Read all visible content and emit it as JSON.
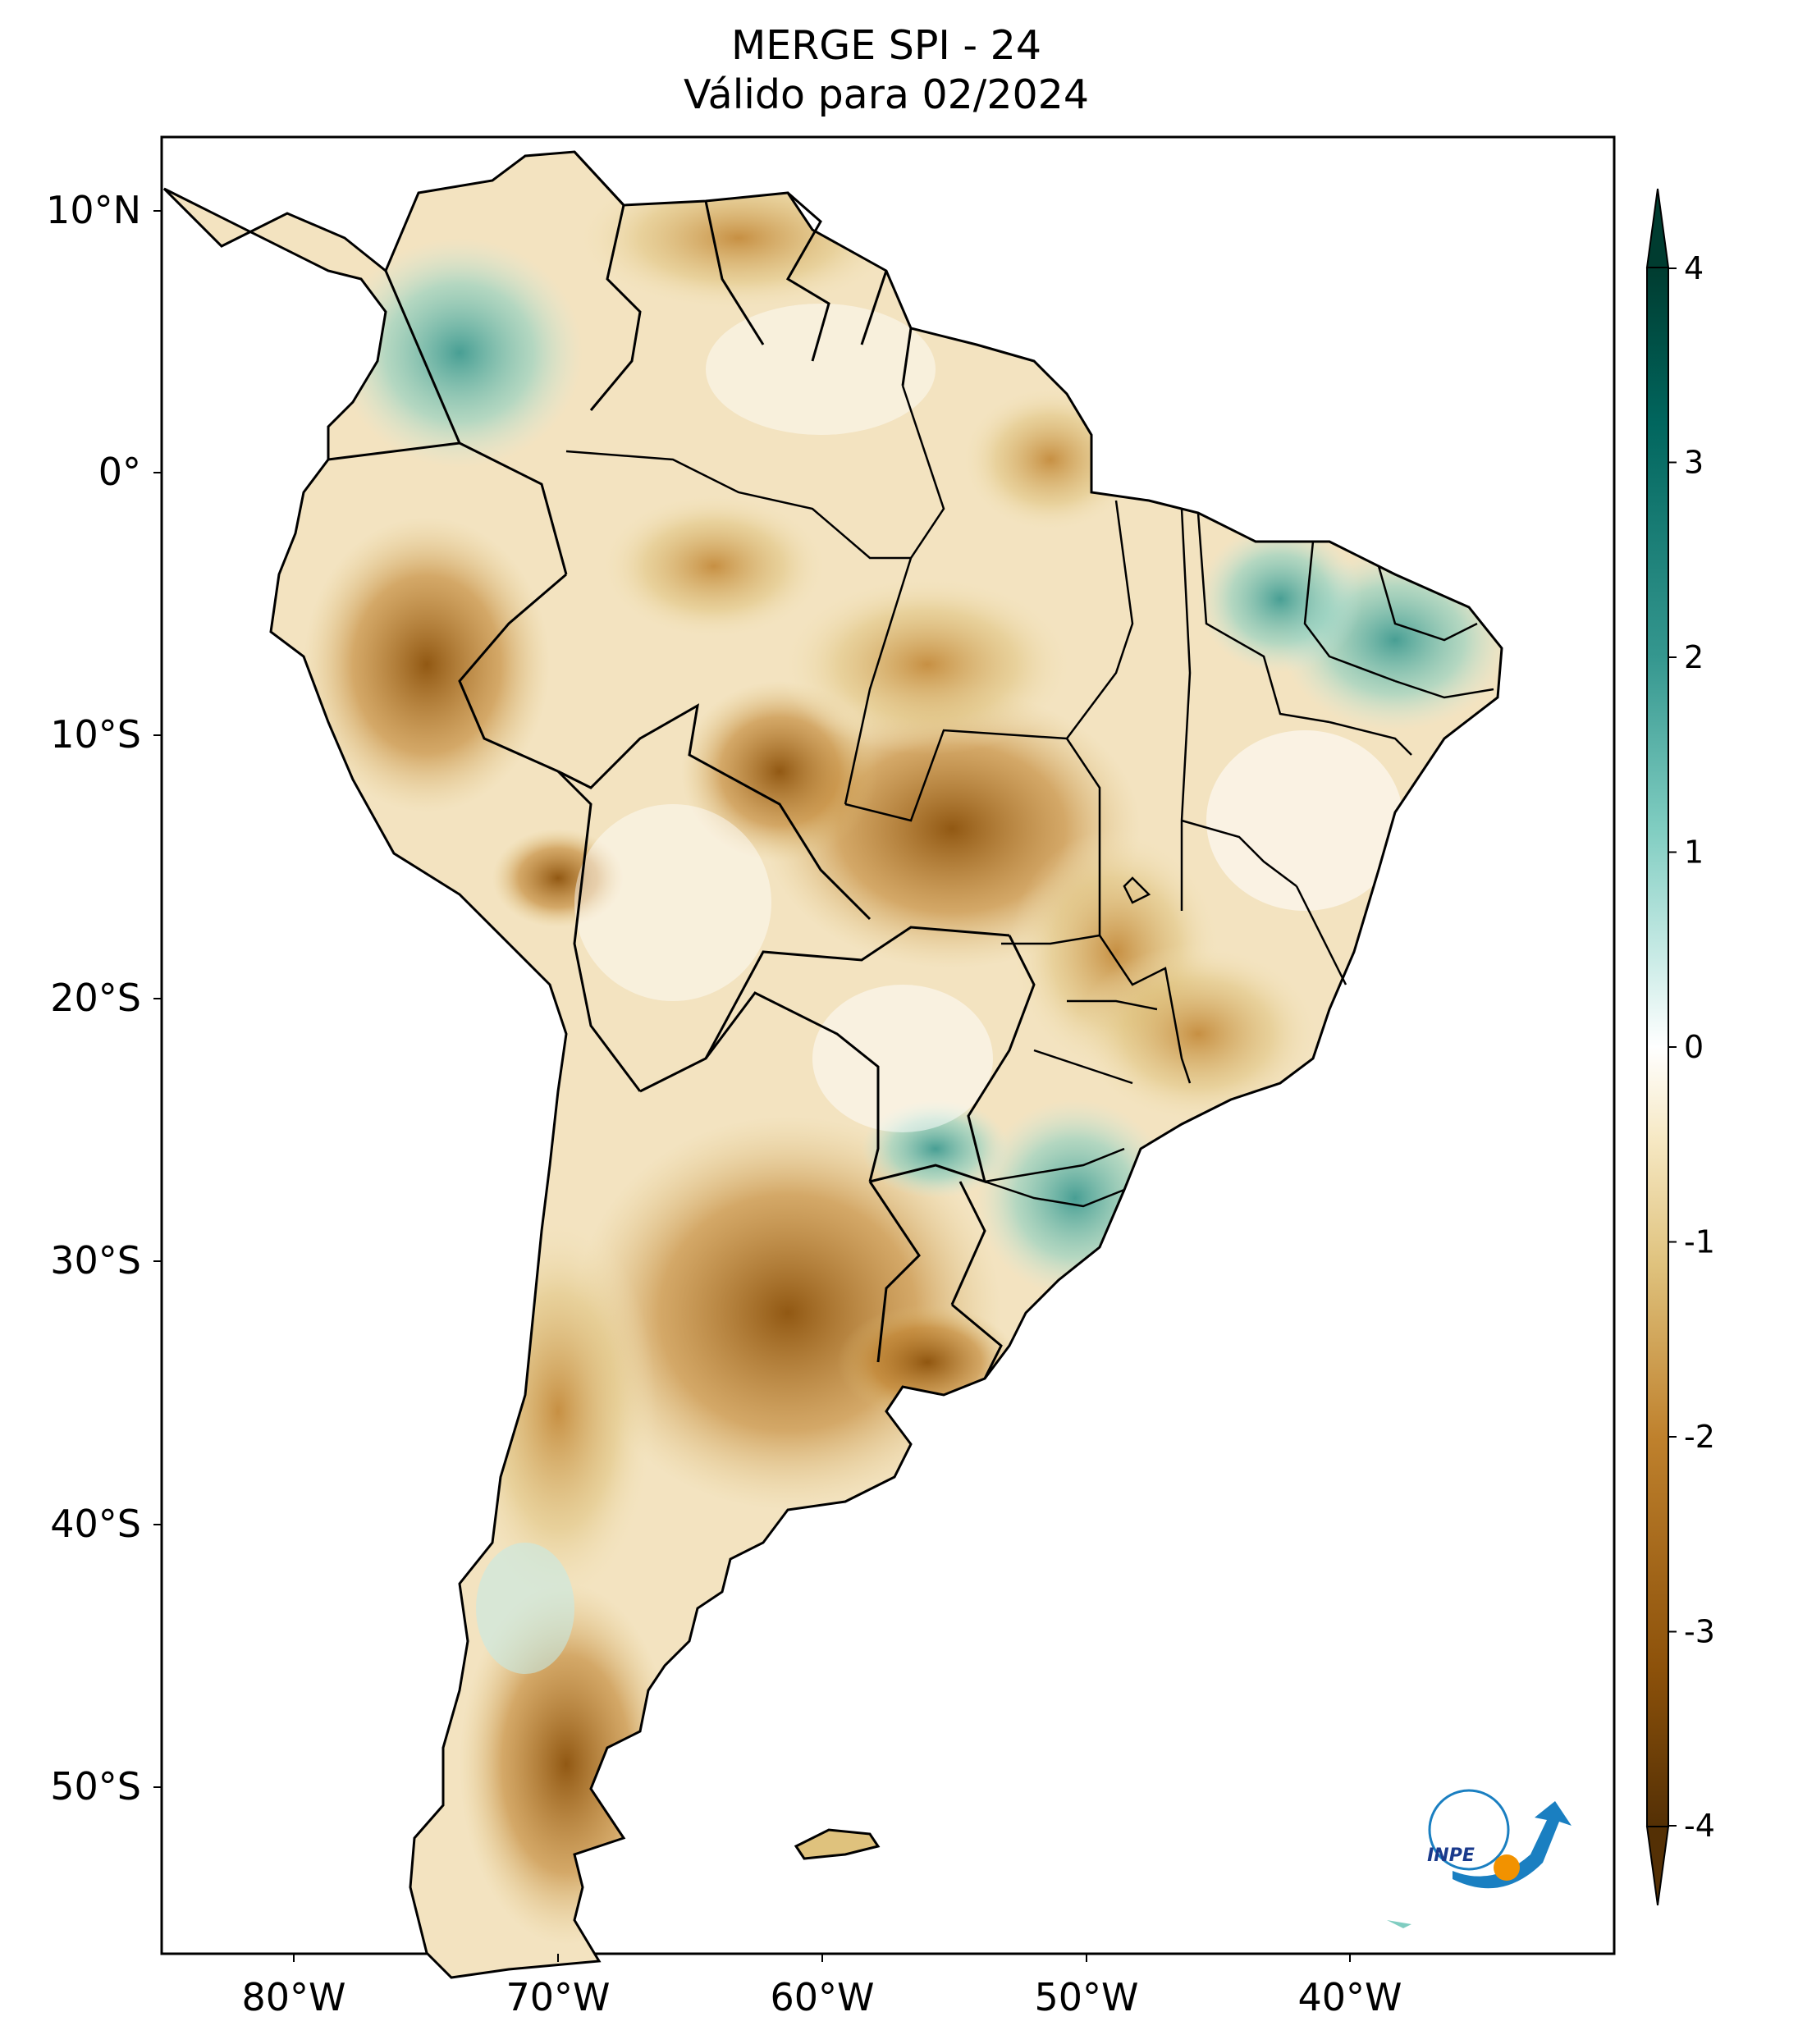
{
  "title": {
    "line1": "MERGE   SPI - 24",
    "line2": "Válido para 02/2024"
  },
  "map": {
    "lat_ticks": [
      "10°N",
      "0°",
      "10°S",
      "20°S",
      "30°S",
      "40°S",
      "50°S"
    ],
    "lon_ticks": [
      "80°W",
      "70°W",
      "60°W",
      "50°W",
      "40°W"
    ],
    "lat_values": [
      10,
      0,
      -10,
      -20,
      -30,
      -40,
      -50
    ],
    "lon_values": [
      -80,
      -70,
      -60,
      -50,
      -40
    ],
    "extent": {
      "lon_min": -85,
      "lon_max": -30,
      "lat_min": -56,
      "lat_max": 13
    }
  },
  "colorbar": {
    "labels": [
      "4",
      "3",
      "2",
      "1",
      "0",
      "-1",
      "-2",
      "-3",
      "-4"
    ],
    "values": [
      4,
      3,
      2,
      1,
      0,
      -1,
      -2,
      -3,
      -4
    ],
    "range": [
      -4,
      4
    ],
    "colors": {
      "neg_extreme": "#543005",
      "neg_strong": "#8c510a",
      "neg_moderate": "#bf812d",
      "neg_mild": "#dfc27d",
      "neg_weak": "#f6e8c3",
      "neutral": "#f5f5f5",
      "pos_weak": "#c7eae5",
      "pos_mild": "#80cdc1",
      "pos_moderate": "#35978f",
      "pos_strong": "#01665e",
      "pos_extreme": "#003c30"
    }
  },
  "logo": {
    "text": "INPE"
  }
}
